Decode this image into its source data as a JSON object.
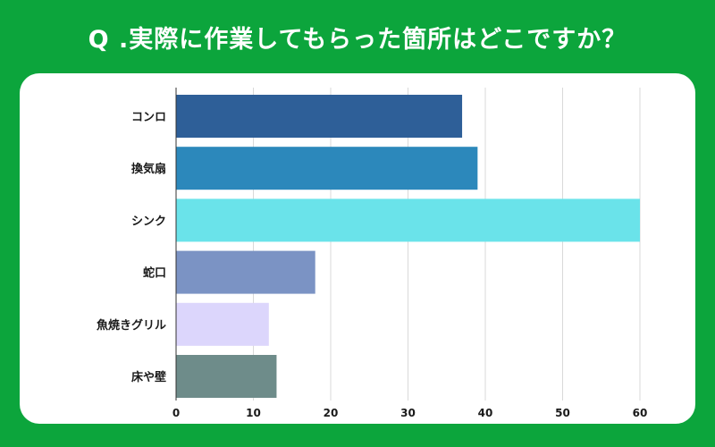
{
  "header": {
    "title": "Q .実際に作業してもらった箇所はどこですか？"
  },
  "chart_data": {
    "type": "bar",
    "orientation": "horizontal",
    "title": "Q .実際に作業してもらった箇所はどこですか？",
    "categories": [
      "コンロ",
      "換気扇",
      "シンク",
      "蛇口",
      "魚焼きグリル",
      "床や壁"
    ],
    "values": [
      37,
      39,
      60,
      18,
      12,
      13
    ],
    "colors": [
      "#2e5f98",
      "#2c88bb",
      "#6ae3ea",
      "#7b93c4",
      "#dcd6fc",
      "#6e8c8a"
    ],
    "xlim": [
      0,
      60
    ],
    "xticks": [
      "0",
      "10",
      "20",
      "30",
      "40",
      "50",
      "60"
    ],
    "xlabel": "",
    "ylabel": "",
    "grid": true,
    "legend": "none"
  }
}
